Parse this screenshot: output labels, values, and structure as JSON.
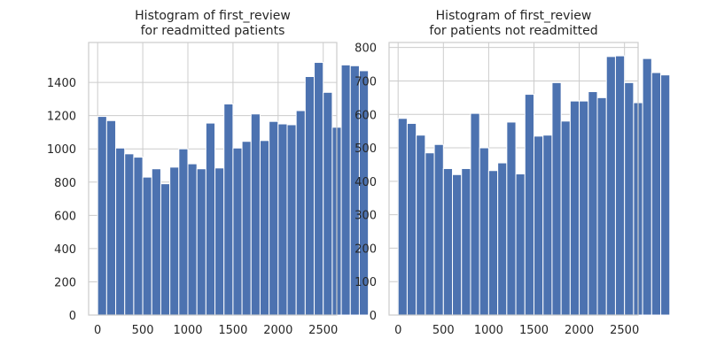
{
  "chart_data": [
    {
      "type": "bar",
      "subtype": "histogram",
      "title_lines": [
        "Histogram of first_review",
        "for readmitted patients"
      ],
      "xlabel": "",
      "ylabel": "",
      "bin_start": 0,
      "bin_width": 100,
      "values": [
        1195,
        1170,
        1005,
        970,
        950,
        830,
        880,
        790,
        890,
        1000,
        910,
        880,
        1155,
        885,
        1270,
        1005,
        1045,
        1210,
        1050,
        1165,
        1150,
        1145,
        1230,
        1435,
        1520,
        1340,
        1130,
        1505,
        1500,
        1470
      ],
      "xlim": [
        -100,
        2650
      ],
      "ylim": [
        0,
        1640
      ],
      "xticks": [
        0,
        500,
        1000,
        1500,
        2000,
        2500
      ],
      "yticks": [
        0,
        200,
        400,
        600,
        800,
        1000,
        1200,
        1400
      ],
      "grid": true,
      "bar_color": "#4c72b0"
    },
    {
      "type": "bar",
      "subtype": "histogram",
      "title_lines": [
        "Histogram of first_review",
        "for patients not readmitted"
      ],
      "xlabel": "",
      "ylabel": "",
      "bin_start": 0,
      "bin_width": 100,
      "values": [
        588,
        573,
        538,
        485,
        510,
        438,
        420,
        438,
        603,
        500,
        432,
        455,
        577,
        422,
        660,
        535,
        538,
        695,
        580,
        640,
        640,
        668,
        650,
        773,
        775,
        695,
        635,
        767,
        725,
        718
      ],
      "xlim": [
        -100,
        2650
      ],
      "ylim": [
        0,
        815
      ],
      "xticks": [
        0,
        500,
        1000,
        1500,
        2000,
        2500
      ],
      "yticks": [
        0,
        100,
        200,
        300,
        400,
        500,
        600,
        700,
        800
      ],
      "grid": true,
      "bar_color": "#4c72b0"
    }
  ]
}
